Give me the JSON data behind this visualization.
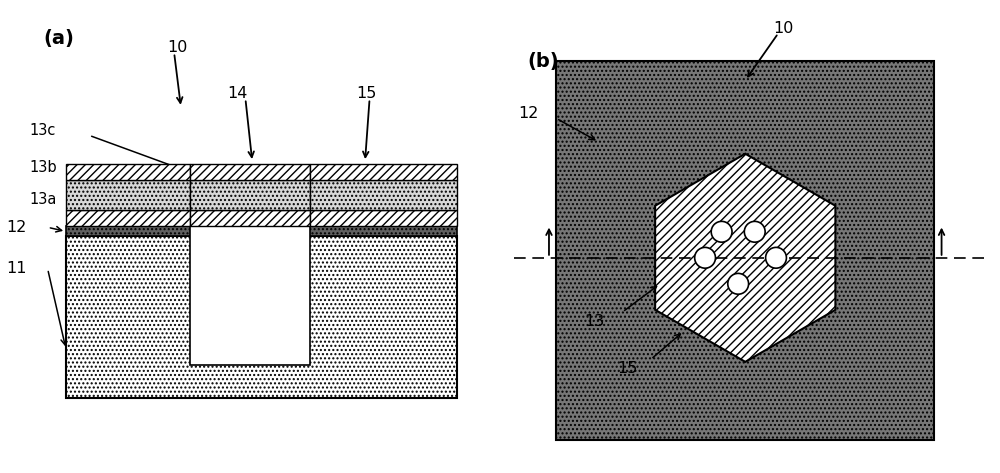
{
  "panel_a_label": "(a)",
  "panel_b_label": "(b)",
  "label_10_a": "10",
  "label_10_b": "10",
  "label_11": "11",
  "label_12_a": "12",
  "label_12_b": "12",
  "label_13": "13",
  "label_13a": "13a",
  "label_13b": "13b",
  "label_13c": "13c",
  "label_14": "14",
  "label_15_a": "15",
  "label_15_b": "15",
  "bg_color": "#ffffff",
  "substrate_color": "#ffffff",
  "layer12_color": "#606060",
  "bg_b_color": "#808080"
}
